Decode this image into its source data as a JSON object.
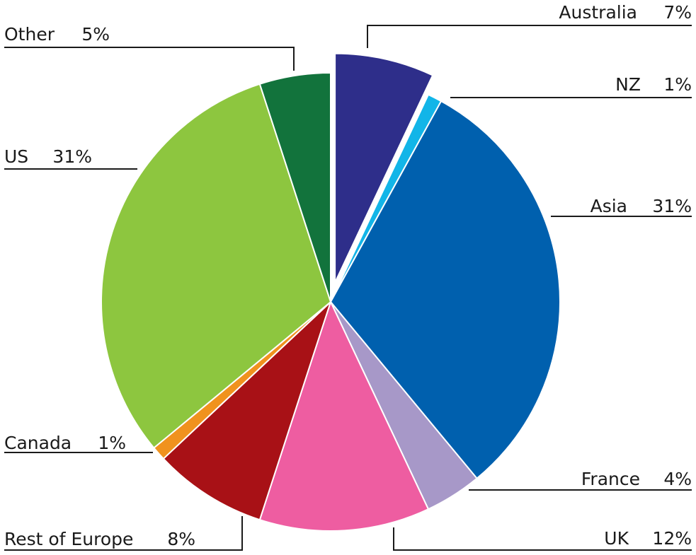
{
  "chart_data": {
    "type": "pie",
    "title": "",
    "slices": [
      {
        "label": "Australia",
        "value": 7,
        "value_label": "7%",
        "color": "#2e2e8a",
        "exploded": true
      },
      {
        "label": "NZ",
        "value": 1,
        "value_label": "1%",
        "color": "#12b5e8",
        "exploded": false
      },
      {
        "label": "Asia",
        "value": 31,
        "value_label": "31%",
        "color": "#0060ae",
        "exploded": false
      },
      {
        "label": "France",
        "value": 4,
        "value_label": "4%",
        "color": "#a798c8",
        "exploded": false
      },
      {
        "label": "UK",
        "value": 12,
        "value_label": "12%",
        "color": "#ee5da1",
        "exploded": false
      },
      {
        "label": "Rest of Europe",
        "value": 8,
        "value_label": "8%",
        "color": "#a81116",
        "exploded": false
      },
      {
        "label": "Canada",
        "value": 1,
        "value_label": "1%",
        "color": "#f0921e",
        "exploded": false
      },
      {
        "label": "US",
        "value": 31,
        "value_label": "31%",
        "color": "#8dc63f",
        "exploded": false
      },
      {
        "label": "Other",
        "value": 5,
        "value_label": "5%",
        "color": "#12733c",
        "exploded": false
      }
    ],
    "legend": "none",
    "start_angle": "12 o'clock, clockwise"
  }
}
